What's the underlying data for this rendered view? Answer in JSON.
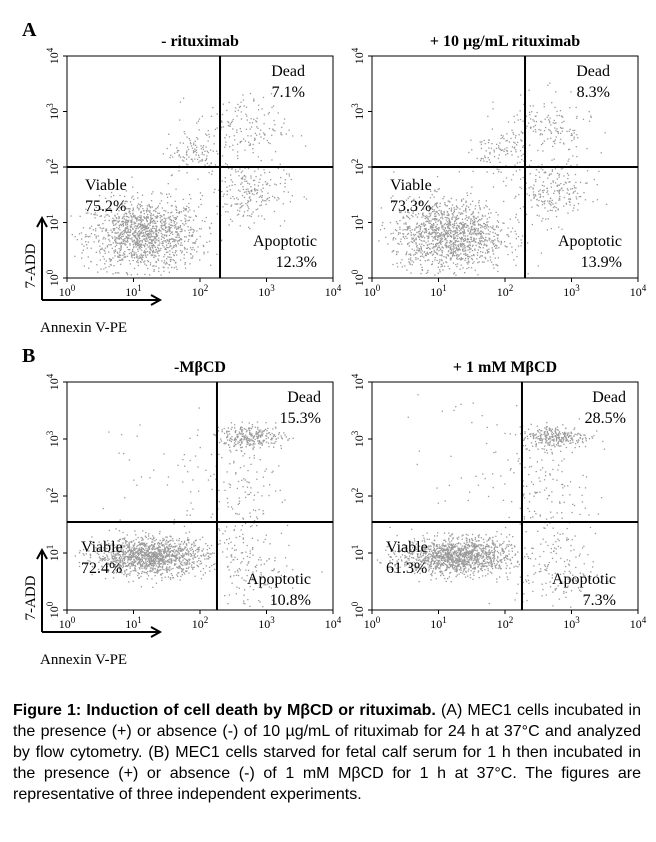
{
  "figure": {
    "axis_labels": {
      "x": "Annexin V-PE",
      "y": "7-ADD"
    },
    "panel_labels": [
      "A",
      "B"
    ]
  },
  "chart_data": [
    {
      "type": "scatter",
      "panel": "A",
      "title": "- rituximab",
      "xlabel": "Annexin V-PE",
      "ylabel": "7-ADD",
      "xscale": "log",
      "yscale": "log",
      "xlim": [
        1,
        10000
      ],
      "ylim": [
        1,
        10000
      ],
      "x_ticks": [
        1,
        10,
        100,
        1000,
        10000
      ],
      "y_ticks": [
        1,
        10,
        100,
        1000,
        10000
      ],
      "gates": {
        "x": 200,
        "y": 100
      },
      "quadrants": [
        {
          "name": "Dead",
          "value": "7.1%"
        },
        {
          "name": "Viable",
          "value": "75.2%"
        },
        {
          "name": "Apoptotic",
          "value": "12.3%"
        }
      ]
    },
    {
      "type": "scatter",
      "panel": "A",
      "title": "+ 10 µg/mL rituximab",
      "xlabel": "",
      "ylabel": "",
      "xscale": "log",
      "yscale": "log",
      "xlim": [
        1,
        10000
      ],
      "ylim": [
        1,
        10000
      ],
      "x_ticks": [
        1,
        10,
        100,
        1000,
        10000
      ],
      "y_ticks": [
        1,
        10,
        100,
        1000,
        10000
      ],
      "gates": {
        "x": 200,
        "y": 100
      },
      "quadrants": [
        {
          "name": "Dead",
          "value": "8.3%"
        },
        {
          "name": "Viable",
          "value": "73.3%"
        },
        {
          "name": "Apoptotic",
          "value": "13.9%"
        }
      ]
    },
    {
      "type": "scatter",
      "panel": "B",
      "title": "-MβCD",
      "xlabel": "Annexin V-PE",
      "ylabel": "7-ADD",
      "xscale": "log",
      "yscale": "log",
      "xlim": [
        1,
        10000
      ],
      "ylim": [
        1,
        10000
      ],
      "x_ticks": [
        1,
        10,
        100,
        1000,
        10000
      ],
      "y_ticks": [
        1,
        10,
        100,
        1000,
        10000
      ],
      "gates": {
        "x": 180,
        "y": 35
      },
      "quadrants": [
        {
          "name": "Dead",
          "value": "15.3%"
        },
        {
          "name": "Viable",
          "value": "72.4%"
        },
        {
          "name": "Apoptotic",
          "value": "10.8%"
        }
      ]
    },
    {
      "type": "scatter",
      "panel": "B",
      "title": "+ 1 mM MβCD",
      "xlabel": "",
      "ylabel": "",
      "xscale": "log",
      "yscale": "log",
      "xlim": [
        1,
        10000
      ],
      "ylim": [
        1,
        10000
      ],
      "x_ticks": [
        1,
        10,
        100,
        1000,
        10000
      ],
      "y_ticks": [
        1,
        10,
        100,
        1000,
        10000
      ],
      "gates": {
        "x": 180,
        "y": 35
      },
      "quadrants": [
        {
          "name": "Dead",
          "value": "28.5%"
        },
        {
          "name": "Viable",
          "value": "61.3%"
        },
        {
          "name": "Apoptotic",
          "value": "7.3%"
        }
      ]
    }
  ],
  "caption": {
    "title": "Figure 1: Induction of cell death by MβCD or rituximab.",
    "body": " (A) MEC1 cells incubated in the presence (+) or absence (-) of 10 µg/mL of rituximab for 24 h at 37°C and analyzed by flow cytometry. (B) MEC1 cells starved for fetal calf serum for 1 h then incubated in the presence (+) or absence (-) of 1 mM MβCD for 1 h at 37°C. The figures are representative of three independent experiments."
  }
}
